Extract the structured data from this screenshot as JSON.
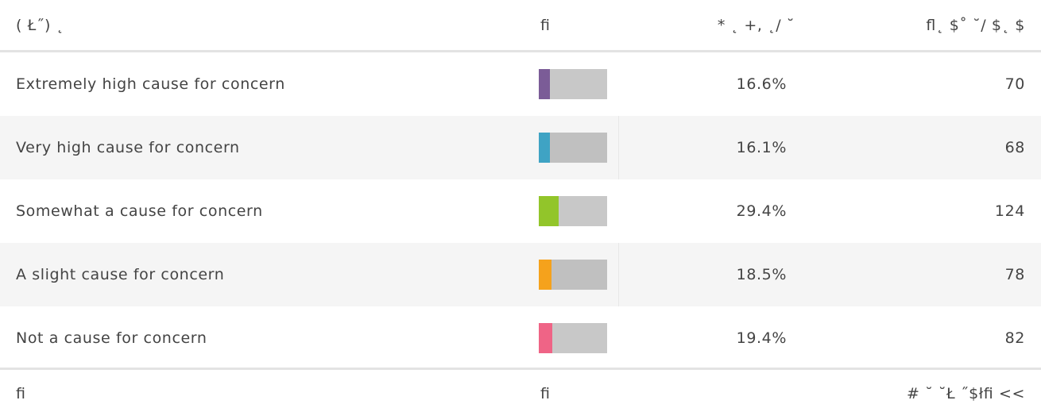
{
  "header": {
    "answer": "( Ł˝) ˛",
    "bar": "ﬁ",
    "percent": "* ˛ +, ˛/ ˘",
    "count": "ﬂ˛ $˚ ˘/ $˛ $"
  },
  "rows": [
    {
      "label": "Extremely high cause for concern",
      "percent": 16.6,
      "percent_label": "16.6%",
      "count": "70",
      "color": "#7b5c97"
    },
    {
      "label": "Very high cause for concern",
      "percent": 16.1,
      "percent_label": "16.1%",
      "count": "68",
      "color": "#3fa3c4"
    },
    {
      "label": "Somewhat a cause for concern",
      "percent": 29.4,
      "percent_label": "29.4%",
      "count": "124",
      "color": "#92c52a"
    },
    {
      "label": "A slight cause for concern",
      "percent": 18.5,
      "percent_label": "18.5%",
      "count": "78",
      "color": "#f5a21c"
    },
    {
      "label": "Not a cause for concern",
      "percent": 19.4,
      "percent_label": "19.4%",
      "count": "82",
      "color": "#ef6486"
    }
  ],
  "footer": {
    "left": "ﬁ",
    "middle": "ﬁ",
    "right": "# ˘ ˘Ł ˝$łﬁ <<"
  }
}
